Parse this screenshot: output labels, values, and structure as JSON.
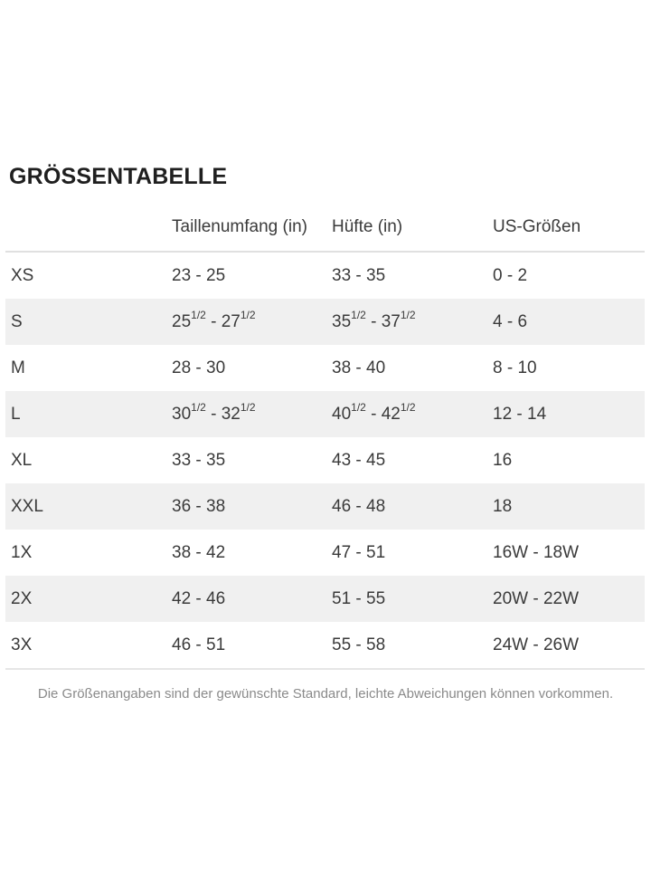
{
  "page": {
    "title": "GRÖSSENTABELLE",
    "footnote": "Die Größenangaben sind der gewünschte Standard, leichte Abweichungen können vorkommen."
  },
  "colors": {
    "background": "#ffffff",
    "title_text": "#1f1f1f",
    "table_text": "#3a3a3a",
    "stripe": "#f0f0f0",
    "border": "#e0e0e0",
    "border_light": "#e6e6e6",
    "footnote_text": "#8a8a8a"
  },
  "size_table": {
    "columns": [
      {
        "key": "size",
        "label": ""
      },
      {
        "key": "waist",
        "label": "Taillenumfang (in)"
      },
      {
        "key": "hip",
        "label": "Hüfte (in)"
      },
      {
        "key": "us",
        "label": "US-Größen"
      }
    ],
    "rows": [
      {
        "size": "XS",
        "waist": [
          "23 - 25"
        ],
        "hip": [
          "33 - 35"
        ],
        "us": [
          "0 - 2"
        ]
      },
      {
        "size": "S",
        "waist": [
          "25",
          {
            "sup": "1/2"
          },
          " - 27",
          {
            "sup": "1/2"
          }
        ],
        "hip": [
          "35",
          {
            "sup": "1/2"
          },
          " - 37",
          {
            "sup": "1/2"
          }
        ],
        "us": [
          "4 - 6"
        ]
      },
      {
        "size": "M",
        "waist": [
          "28 - 30"
        ],
        "hip": [
          "38 - 40"
        ],
        "us": [
          "8 - 10"
        ]
      },
      {
        "size": "L",
        "waist": [
          "30",
          {
            "sup": "1/2"
          },
          " - 32",
          {
            "sup": "1/2"
          }
        ],
        "hip": [
          "40",
          {
            "sup": "1/2"
          },
          " - 42",
          {
            "sup": "1/2"
          }
        ],
        "us": [
          "12 - 14"
        ]
      },
      {
        "size": "XL",
        "waist": [
          "33 - 35"
        ],
        "hip": [
          "43 - 45"
        ],
        "us": [
          "16"
        ]
      },
      {
        "size": "XXL",
        "waist": [
          "36 - 38"
        ],
        "hip": [
          "46 - 48"
        ],
        "us": [
          "18"
        ]
      },
      {
        "size": "1X",
        "waist": [
          "38 - 42"
        ],
        "hip": [
          "47 - 51"
        ],
        "us": [
          "16W - 18W"
        ]
      },
      {
        "size": "2X",
        "waist": [
          "42 - 46"
        ],
        "hip": [
          "51 - 55"
        ],
        "us": [
          "20W - 22W"
        ]
      },
      {
        "size": "3X",
        "waist": [
          "46 - 51"
        ],
        "hip": [
          "55 - 58"
        ],
        "us": [
          "24W - 26W"
        ]
      }
    ]
  }
}
